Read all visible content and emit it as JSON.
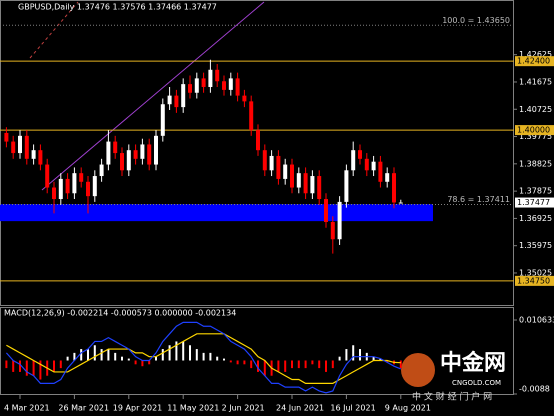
{
  "chart_data": [
    {
      "type": "candlestick",
      "title": "GBPUSD,Daily  1.37476 1.37576 1.37466 1.37477",
      "categories": [
        null,
        null,
        "4 Mar 2021",
        null,
        null,
        null,
        null,
        null,
        null,
        null,
        "26 Mar 2021",
        null,
        null,
        null,
        null,
        null,
        null,
        null,
        "19 Apr 2021",
        null,
        null,
        null,
        null,
        null,
        null,
        null,
        "11 May 2021",
        null,
        null,
        null,
        null,
        null,
        null,
        null,
        "2 Jun 2021",
        null,
        null,
        null,
        null,
        null,
        null,
        null,
        "24 Jun 2021",
        null,
        null,
        null,
        null,
        null,
        null,
        null,
        "16 Jul 2021",
        null,
        null,
        null,
        null,
        null,
        null,
        null,
        "9 Aug 2021"
      ],
      "open": [
        1.399,
        1.396,
        1.392,
        1.398,
        1.39,
        1.393,
        1.388,
        1.38,
        1.376,
        1.383,
        1.378,
        1.385,
        1.382,
        1.377,
        1.384,
        1.388,
        1.396,
        1.392,
        1.386,
        1.393,
        1.39,
        1.395,
        1.388,
        1.398,
        1.409,
        1.412,
        1.408,
        1.416,
        1.413,
        1.418,
        1.415,
        1.421,
        1.417,
        1.414,
        1.418,
        1.412,
        1.41,
        1.4,
        1.393,
        1.386,
        1.391,
        1.383,
        1.388,
        1.38,
        1.385,
        1.378,
        1.384,
        1.376,
        1.368,
        1.362,
        1.375,
        1.386,
        1.393,
        1.39,
        1.386,
        1.389,
        1.382,
        1.385,
        1.37476
      ],
      "high": [
        1.401,
        1.398,
        1.4,
        1.4,
        1.395,
        1.395,
        1.39,
        1.382,
        1.385,
        1.385,
        1.387,
        1.387,
        1.384,
        1.386,
        1.39,
        1.4,
        1.398,
        1.394,
        1.395,
        1.395,
        1.397,
        1.397,
        1.4,
        1.411,
        1.415,
        1.414,
        1.418,
        1.419,
        1.42,
        1.42,
        1.4245,
        1.423,
        1.419,
        1.42,
        1.42,
        1.414,
        1.412,
        1.402,
        1.395,
        1.393,
        1.393,
        1.39,
        1.39,
        1.387,
        1.387,
        1.386,
        1.386,
        1.378,
        1.37,
        1.377,
        1.388,
        1.396,
        1.395,
        1.392,
        1.391,
        1.391,
        1.387,
        1.387,
        1.37576
      ],
      "low": [
        1.394,
        1.39,
        1.39,
        1.388,
        1.388,
        1.386,
        1.378,
        1.371,
        1.374,
        1.376,
        1.376,
        1.38,
        1.371,
        1.375,
        1.382,
        1.386,
        1.39,
        1.384,
        1.384,
        1.388,
        1.388,
        1.386,
        1.386,
        1.396,
        1.407,
        1.406,
        1.406,
        1.411,
        1.411,
        1.413,
        1.413,
        1.415,
        1.412,
        1.412,
        1.41,
        1.408,
        1.398,
        1.391,
        1.384,
        1.384,
        1.381,
        1.381,
        1.378,
        1.378,
        1.376,
        1.376,
        1.374,
        1.366,
        1.357,
        1.36,
        1.373,
        1.384,
        1.388,
        1.384,
        1.384,
        1.38,
        1.38,
        1.3728,
        1.37466
      ],
      "close": [
        1.396,
        1.392,
        1.398,
        1.39,
        1.393,
        1.388,
        1.38,
        1.376,
        1.383,
        1.378,
        1.385,
        1.382,
        1.377,
        1.384,
        1.388,
        1.396,
        1.392,
        1.386,
        1.393,
        1.39,
        1.395,
        1.388,
        1.398,
        1.409,
        1.412,
        1.408,
        1.416,
        1.413,
        1.418,
        1.415,
        1.421,
        1.417,
        1.414,
        1.418,
        1.412,
        1.41,
        1.4,
        1.393,
        1.386,
        1.391,
        1.383,
        1.388,
        1.38,
        1.385,
        1.378,
        1.384,
        1.376,
        1.368,
        1.362,
        1.375,
        1.386,
        1.393,
        1.39,
        1.386,
        1.389,
        1.382,
        1.385,
        1.3748,
        1.37477
      ],
      "up_color": "#ffffff",
      "down_color": "#ff0000",
      "ylim": [
        1.3391,
        1.4439
      ],
      "yticks": [
        1.35025,
        1.35975,
        1.36925,
        1.37875,
        1.38825,
        1.39775,
        1.40725,
        1.41675,
        1.42625
      ],
      "levels": [
        {
          "value": 1.424,
          "label": "1.42400"
        },
        {
          "value": 1.4,
          "label": "1.40000"
        },
        {
          "value": 1.3475,
          "label": "1.34750"
        }
      ],
      "level_color": "#e6b422",
      "fib_lines": [
        {
          "value": 1.4365,
          "label": "100.0 = 1.43650"
        },
        {
          "value": 1.37411,
          "label": "78.6 = 1.37411"
        }
      ],
      "zone": [
        1.3683,
        1.3742
      ],
      "zone_color": "#0000ff"
    },
    {
      "type": "macd",
      "title": "MACD(12,26,9) -0.002214 -0.000573 0.000000 -0.002134",
      "values": [
        -0.002,
        -0.003,
        -0.003,
        -0.004,
        -0.004,
        -0.005,
        -0.004,
        -0.003,
        -0.002,
        0.001,
        0.002,
        0.003,
        0.003,
        0.004,
        0.003,
        0.003,
        0.002,
        0.001,
        0.0005,
        -0.001,
        -0.0015,
        -0.001,
        0.001,
        0.003,
        0.004,
        0.005,
        0.005,
        0.004,
        0.003,
        0.002,
        0.002,
        0.001,
        0.0005,
        -0.0005,
        -0.001,
        -0.001,
        -0.002,
        -0.003,
        -0.004,
        -0.004,
        -0.003,
        -0.003,
        -0.002,
        -0.002,
        -0.002,
        -0.001,
        -0.002,
        -0.003,
        -0.002,
        0.001,
        0.003,
        0.004,
        0.003,
        0.002,
        0.001,
        0.0005,
        -0.0005,
        -0.001,
        -0.002
      ],
      "pos_color": "#ffffff",
      "neg_color": "#ff0000",
      "series": [
        {
          "color": "#ffd700",
          "values": [
            0.004,
            0.003,
            0.002,
            0.001,
            0,
            -0.001,
            -0.002,
            -0.003,
            -0.003,
            -0.003,
            -0.002,
            -0.001,
            0,
            0.001,
            0.002,
            0.003,
            0.003,
            0.003,
            0.003,
            0.002,
            0.002,
            0.001,
            0.001,
            0.002,
            0.003,
            0.004,
            0.005,
            0.006,
            0.007,
            0.007,
            0.007,
            0.007,
            0.007,
            0.006,
            0.005,
            0.004,
            0.003,
            0.001,
            0,
            -0.002,
            -0.003,
            -0.004,
            -0.005,
            -0.005,
            -0.006,
            -0.006,
            -0.006,
            -0.006,
            -0.006,
            -0.005,
            -0.004,
            -0.003,
            -0.002,
            -0.001,
            0,
            0,
            0,
            -0.0005,
            -0.000573
          ]
        },
        {
          "color": "#1e40ff",
          "values": [
            0.002,
            0,
            -0.001,
            -0.003,
            -0.004,
            -0.006,
            -0.006,
            -0.006,
            -0.005,
            -0.002,
            0,
            0.002,
            0.003,
            0.005,
            0.005,
            0.006,
            0.005,
            0.004,
            0.003,
            0.001,
            0,
            0,
            0.002,
            0.005,
            0.007,
            0.009,
            0.01,
            0.01,
            0.01,
            0.009,
            0.009,
            0.008,
            0.007,
            0.005,
            0.004,
            0.003,
            0.001,
            -0.002,
            -0.004,
            -0.006,
            -0.006,
            -0.007,
            -0.007,
            -0.007,
            -0.008,
            -0.007,
            -0.008,
            -0.0085,
            -0.008,
            -0.004,
            -0.001,
            0.001,
            0.001,
            0.001,
            0.001,
            0.0005,
            -0.0005,
            -0.0015,
            -0.002214
          ]
        }
      ],
      "ylim": [
        -0.0088,
        0.010633
      ],
      "yticks": [
        0.010633,
        -0.0088
      ]
    }
  ],
  "watermark": {
    "logo": "中金网",
    "site": "CNGOLD.COM",
    "slogan": "中 文 财 经 门 户 网"
  }
}
